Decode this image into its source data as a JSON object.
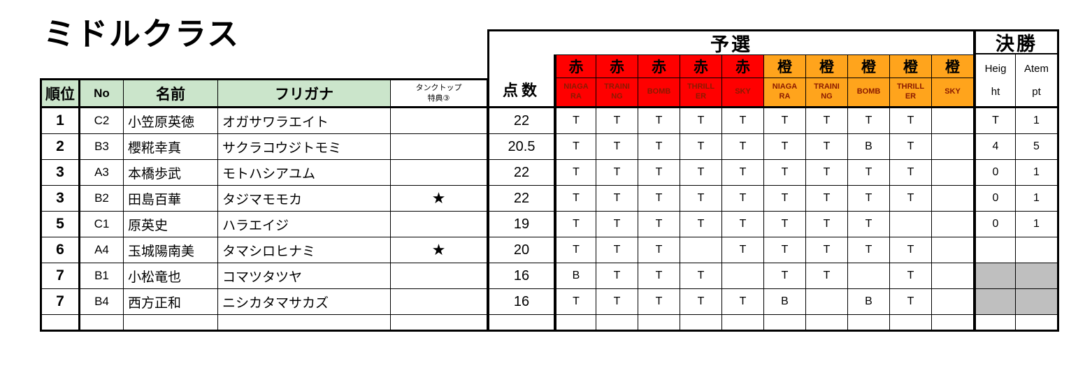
{
  "title": "ミドルクラス",
  "colors": {
    "red": "#ff0000",
    "orange": "#ffa41c",
    "header_green": "#cbe5cb",
    "gray": "#bfbfbf",
    "dark_red_text": "#8b1a00"
  },
  "table": {
    "headers": {
      "rank": "順位",
      "no": "No",
      "name": "名前",
      "furigana": "フリガナ",
      "tanktop": "タンクトップ\n特典③",
      "score": "点数",
      "qualifying": "予選",
      "final": "決勝",
      "red": "赤",
      "orange": "橙",
      "events": [
        "NIAGA\nRA",
        "TRAINI\nNG",
        "BOMB",
        "THRILL\nER",
        "SKY"
      ],
      "height": "Heig\nht",
      "attempt": "Atem\npt"
    },
    "rows": [
      {
        "rank": "1",
        "no": "C2",
        "name": "小笠原英徳",
        "furigana": "オガサワラエイト",
        "tanktop": "",
        "score": "22",
        "red": [
          "T",
          "T",
          "T",
          "T",
          "T"
        ],
        "orange": [
          "T",
          "T",
          "T",
          "T",
          ""
        ],
        "height": "T",
        "attempt": "1",
        "final_gray": false
      },
      {
        "rank": "2",
        "no": "B3",
        "name": "櫻糀幸真",
        "furigana": "サクラコウジトモミ",
        "tanktop": "",
        "score": "20.5",
        "red": [
          "T",
          "T",
          "T",
          "T",
          "T"
        ],
        "orange": [
          "T",
          "T",
          "B",
          "T",
          ""
        ],
        "height": "4",
        "attempt": "5",
        "final_gray": false
      },
      {
        "rank": "3",
        "no": "A3",
        "name": "本橋歩武",
        "furigana": "モトハシアユム",
        "tanktop": "",
        "score": "22",
        "red": [
          "T",
          "T",
          "T",
          "T",
          "T"
        ],
        "orange": [
          "T",
          "T",
          "T",
          "T",
          ""
        ],
        "height": "0",
        "attempt": "1",
        "final_gray": false
      },
      {
        "rank": "3",
        "no": "B2",
        "name": "田島百華",
        "furigana": "タジマモモカ",
        "tanktop": "★",
        "score": "22",
        "red": [
          "T",
          "T",
          "T",
          "T",
          "T"
        ],
        "orange": [
          "T",
          "T",
          "T",
          "T",
          ""
        ],
        "height": "0",
        "attempt": "1",
        "final_gray": false
      },
      {
        "rank": "5",
        "no": "C1",
        "name": "原英史",
        "furigana": "ハラエイジ",
        "tanktop": "",
        "score": "19",
        "red": [
          "T",
          "T",
          "T",
          "T",
          "T"
        ],
        "orange": [
          "T",
          "T",
          "T",
          "",
          ""
        ],
        "height": "0",
        "attempt": "1",
        "final_gray": false
      },
      {
        "rank": "6",
        "no": "A4",
        "name": "玉城陽南美",
        "furigana": "タマシロヒナミ",
        "tanktop": "★",
        "score": "20",
        "red": [
          "T",
          "T",
          "T",
          "",
          "T"
        ],
        "orange": [
          "T",
          "T",
          "T",
          "T",
          ""
        ],
        "height": "",
        "attempt": "",
        "final_gray": false
      },
      {
        "rank": "7",
        "no": "B1",
        "name": "小松竜也",
        "furigana": "コマツタツヤ",
        "tanktop": "",
        "score": "16",
        "red": [
          "B",
          "T",
          "T",
          "T",
          ""
        ],
        "orange": [
          "T",
          "T",
          "",
          "T",
          ""
        ],
        "height": "",
        "attempt": "",
        "final_gray": true
      },
      {
        "rank": "7",
        "no": "B4",
        "name": "西方正和",
        "furigana": "ニシカタマサカズ",
        "tanktop": "",
        "score": "16",
        "red": [
          "T",
          "T",
          "T",
          "T",
          "T"
        ],
        "orange": [
          "B",
          "",
          "B",
          "T",
          ""
        ],
        "height": "",
        "attempt": "",
        "final_gray": true
      },
      {
        "rank": "",
        "no": "",
        "name": "",
        "furigana": "",
        "tanktop": "",
        "score": "",
        "red": [
          "",
          "",
          "",
          "",
          ""
        ],
        "orange": [
          "",
          "",
          "",
          "",
          ""
        ],
        "height": "",
        "attempt": "",
        "final_gray": false
      }
    ]
  }
}
